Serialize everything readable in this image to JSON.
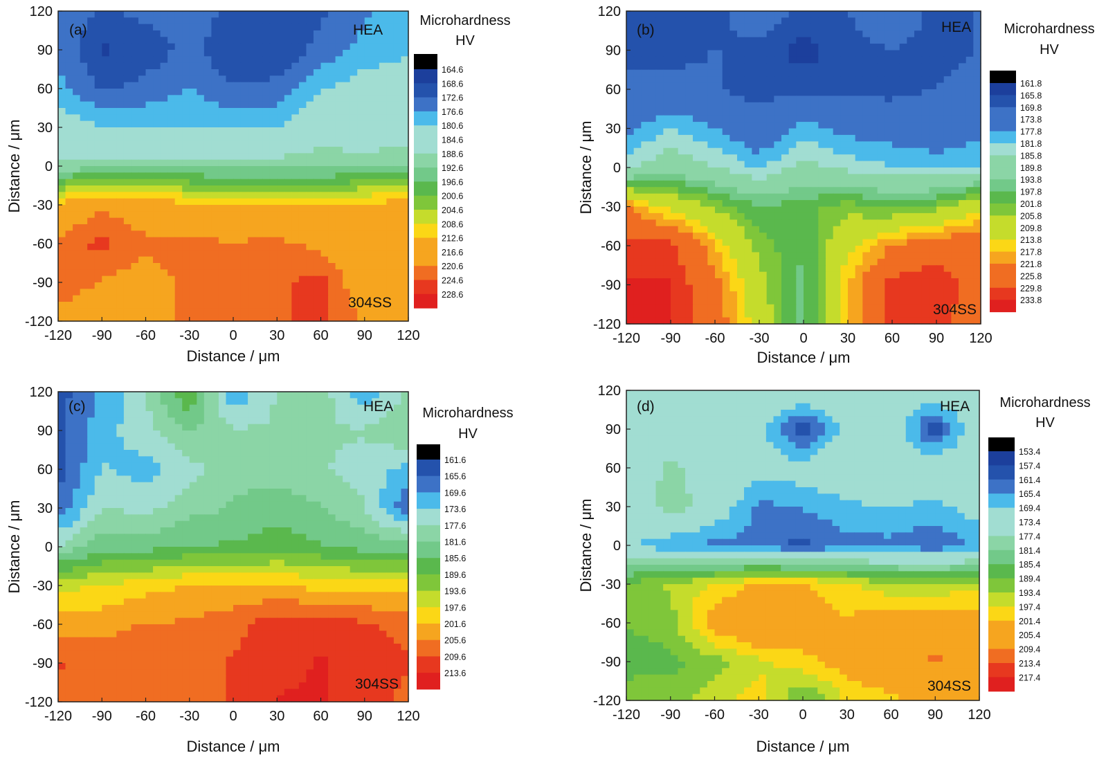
{
  "figure": {
    "x_label": "Distance / μm",
    "y_label": "Distance / μm",
    "colorbar_title_line1": "Microhardness",
    "colorbar_title_line2": "HV",
    "label_top": "HEA",
    "label_bottom": "304SS"
  },
  "colors": {
    "top_cap": "#000000",
    "ramp": [
      "#1c3f9c",
      "#2452ac",
      "#3d72c6",
      "#4bbaea",
      "#a1ddd2",
      "#8bd5a6",
      "#72c989",
      "#5ab84d",
      "#7fc63a",
      "#c5dc2c",
      "#fbd716",
      "#f6a51f",
      "#f06d22",
      "#e7381f",
      "#e0201f"
    ]
  },
  "chart_data": [
    {
      "type": "heatmap",
      "panel_label": "(a)",
      "x_ticks": [
        "-120",
        "-90",
        "-60",
        "-30",
        "0",
        "30",
        "60",
        "90",
        "120"
      ],
      "y_ticks": [
        "120",
        "90",
        "60",
        "30",
        "0",
        "-30",
        "-60",
        "-90",
        "-120"
      ],
      "xlim": [
        -120,
        120
      ],
      "ylim": [
        -120,
        120
      ],
      "colorbar_ticks": [
        "164.6",
        "168.6",
        "172.6",
        "176.6",
        "180.6",
        "184.6",
        "188.6",
        "192.6",
        "196.6",
        "200.6",
        "204.6",
        "208.6",
        "212.6",
        "216.6",
        "220.6",
        "224.6",
        "228.6"
      ],
      "color_ramp_start": 0,
      "x": [
        -120,
        -90,
        -60,
        -30,
        0,
        30,
        60,
        90,
        120
      ],
      "y": [
        120,
        90,
        60,
        30,
        0,
        -30,
        -60,
        -90,
        -120
      ],
      "z": [
        [
          176,
          172,
          174,
          176,
          171,
          170,
          172,
          176,
          178
        ],
        [
          176,
          168,
          170,
          174,
          169,
          169,
          174,
          178,
          180
        ],
        [
          178,
          172,
          174,
          177,
          173,
          174,
          180,
          183,
          184
        ],
        [
          184,
          181,
          180,
          180,
          180,
          180,
          186,
          183,
          186
        ],
        [
          190,
          191,
          191,
          191,
          191,
          191,
          191,
          192,
          192
        ],
        [
          214,
          220,
          216,
          214,
          212,
          212,
          212,
          214,
          215
        ],
        [
          222,
          226,
          222,
          222,
          221,
          222,
          219,
          216,
          216
        ],
        [
          224,
          220,
          218,
          222,
          222,
          224,
          226,
          216,
          216
        ],
        [
          218,
          216,
          218,
          222,
          222,
          224,
          226,
          220,
          216
        ]
      ]
    },
    {
      "type": "heatmap",
      "panel_label": "(b)",
      "x_ticks": [
        "-120",
        "-90",
        "-60",
        "-30",
        "0",
        "30",
        "60",
        "90",
        "120"
      ],
      "y_ticks": [
        "120",
        "90",
        "60",
        "30",
        "0",
        "-30",
        "-60",
        "-90",
        "-120"
      ],
      "xlim": [
        -120,
        120
      ],
      "ylim": [
        -120,
        120
      ],
      "colorbar_ticks": [
        "161.8",
        "165.8",
        "169.8",
        "173.8",
        "177.8",
        "181.8",
        "185.8",
        "189.8",
        "193.8",
        "197.8",
        "201.8",
        "205.8",
        "209.8",
        "213.8",
        "217.8",
        "221.8",
        "225.8",
        "229.8",
        "233.8"
      ],
      "color_ramp_start": 0,
      "x": [
        -120,
        -90,
        -60,
        -30,
        0,
        30,
        60,
        90,
        120
      ],
      "y": [
        120,
        90,
        60,
        30,
        0,
        -30,
        -60,
        -90,
        -120
      ],
      "z": [
        [
          166,
          166,
          168,
          174,
          168,
          170,
          174,
          168,
          170
        ],
        [
          168,
          168,
          170,
          168,
          164,
          168,
          170,
          168,
          170
        ],
        [
          172,
          172,
          170,
          168,
          168,
          168,
          168,
          170,
          172
        ],
        [
          176,
          182,
          178,
          172,
          180,
          176,
          175,
          174,
          176
        ],
        [
          184,
          190,
          186,
          181,
          188,
          184,
          182,
          180,
          182
        ],
        [
          222,
          212,
          205,
          198,
          200,
          204,
          200,
          204,
          212
        ],
        [
          232,
          232,
          218,
          204,
          198,
          212,
          222,
          226,
          228
        ],
        [
          234,
          234,
          224,
          208,
          196,
          218,
          232,
          234,
          226
        ],
        [
          234,
          234,
          226,
          210,
          196,
          218,
          232,
          232,
          224
        ]
      ]
    },
    {
      "type": "heatmap",
      "panel_label": "(c)",
      "x_ticks": [
        "-120",
        "-90",
        "-60",
        "-30",
        "0",
        "30",
        "60",
        "90",
        "120"
      ],
      "y_ticks": [
        "120",
        "90",
        "60",
        "30",
        "0",
        "-30",
        "-60",
        "-90",
        "-120"
      ],
      "xlim": [
        -120,
        120
      ],
      "ylim": [
        -120,
        120
      ],
      "colorbar_ticks": [
        "161.6",
        "165.6",
        "169.6",
        "173.6",
        "177.6",
        "181.6",
        "185.6",
        "189.6",
        "193.6",
        "197.6",
        "201.6",
        "205.6",
        "209.6",
        "213.6"
      ],
      "color_ramp_start": 1,
      "x": [
        -120,
        -90,
        -60,
        -30,
        0,
        30,
        60,
        90,
        120
      ],
      "y": [
        120,
        90,
        60,
        30,
        0,
        -30,
        -60,
        -90,
        -120
      ],
      "z": [
        [
          164,
          170,
          178,
          190,
          170,
          178,
          180,
          170,
          178
        ],
        [
          164,
          172,
          176,
          182,
          178,
          178,
          178,
          178,
          182
        ],
        [
          164,
          174,
          172,
          176,
          180,
          180,
          178,
          176,
          172
        ],
        [
          166,
          178,
          176,
          180,
          182,
          184,
          182,
          178,
          166
        ],
        [
          178,
          184,
          184,
          186,
          186,
          188,
          186,
          184,
          184
        ],
        [
          196,
          198,
          200,
          202,
          202,
          202,
          200,
          200,
          200
        ],
        [
          204,
          204,
          206,
          206,
          208,
          212,
          212,
          210,
          208
        ],
        [
          210,
          208,
          208,
          208,
          210,
          212,
          214,
          212,
          210
        ],
        [
          208,
          208,
          208,
          208,
          210,
          214,
          214,
          212,
          208
        ]
      ]
    },
    {
      "type": "heatmap",
      "panel_label": "(d)",
      "x_ticks": [
        "-120",
        "-90",
        "-60",
        "-30",
        "0",
        "30",
        "60",
        "90",
        "120"
      ],
      "y_ticks": [
        "120",
        "90",
        "60",
        "30",
        "0",
        "-30",
        "-60",
        "-90",
        "-120"
      ],
      "xlim": [
        -120,
        120
      ],
      "ylim": [
        -120,
        120
      ],
      "colorbar_ticks": [
        "153.4",
        "157.4",
        "161.4",
        "165.4",
        "169.4",
        "173.4",
        "177.4",
        "181.4",
        "185.4",
        "189.4",
        "193.4",
        "197.4",
        "201.4",
        "205.4",
        "209.4",
        "213.4",
        "217.4"
      ],
      "color_ramp_start": 0,
      "x": [
        -120,
        -90,
        -60,
        -30,
        0,
        30,
        60,
        90,
        120
      ],
      "y": [
        120,
        90,
        60,
        30,
        0,
        -30,
        -60,
        -90,
        -120
      ],
      "z": [
        [
          174,
          176,
          176,
          178,
          176,
          178,
          176,
          174,
          176
        ],
        [
          174,
          176,
          176,
          172,
          158,
          172,
          174,
          158,
          176
        ],
        [
          174,
          178,
          176,
          172,
          172,
          176,
          176,
          174,
          176
        ],
        [
          172,
          180,
          174,
          164,
          166,
          168,
          170,
          168,
          172
        ],
        [
          170,
          166,
          164,
          164,
          160,
          164,
          164,
          162,
          166
        ],
        [
          190,
          194,
          198,
          202,
          202,
          198,
          194,
          194,
          196
        ],
        [
          190,
          192,
          204,
          210,
          206,
          202,
          206,
          206,
          204
        ],
        [
          186,
          188,
          192,
          196,
          200,
          204,
          208,
          210,
          208
        ],
        [
          194,
          192,
          196,
          200,
          188,
          198,
          200,
          204,
          208
        ]
      ]
    }
  ]
}
